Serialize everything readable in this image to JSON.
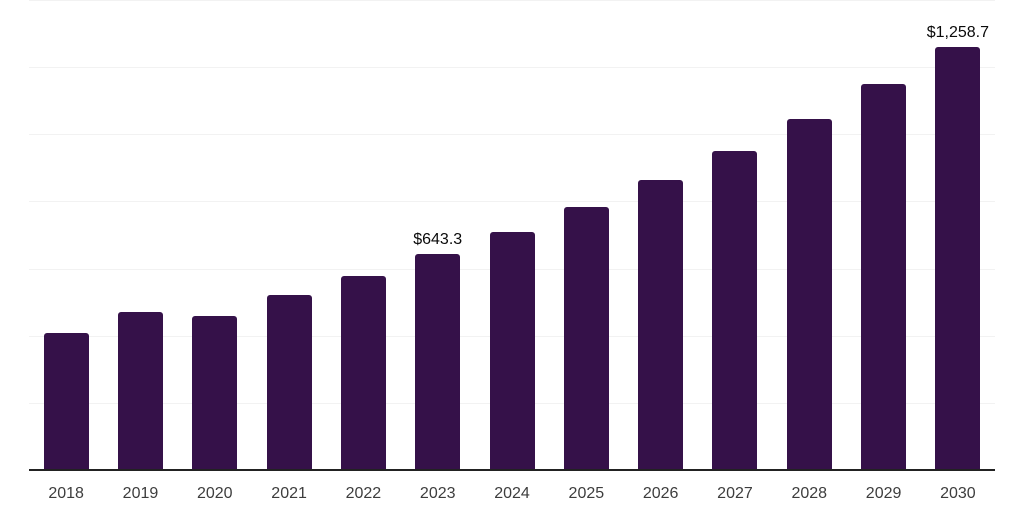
{
  "chart_data": {
    "type": "bar",
    "title": "",
    "xlabel": "",
    "ylabel": "",
    "categories": [
      "2018",
      "2019",
      "2020",
      "2021",
      "2022",
      "2023",
      "2024",
      "2025",
      "2026",
      "2027",
      "2028",
      "2029",
      "2030"
    ],
    "values": [
      409,
      472,
      459,
      521,
      579,
      643.3,
      710,
      782,
      864,
      950,
      1046,
      1150,
      1258.7
    ],
    "bar_labels": [
      "",
      "",
      "",
      "",
      "",
      "$643.3",
      "",
      "",
      "",
      "",
      "",
      "",
      "$1,258.7"
    ],
    "ylim": [
      0,
      1400
    ],
    "gridline_step": 200,
    "grid": "horizontal-only",
    "legend": "none",
    "y_axis_ticks_visible": false,
    "colors": {
      "bar": "#351149",
      "axis_line": "#222222",
      "gridline": "#f2f2f2",
      "tick_label": "#3d3d3d",
      "value_label": "#0a0a0a",
      "background": "#ffffff"
    }
  }
}
